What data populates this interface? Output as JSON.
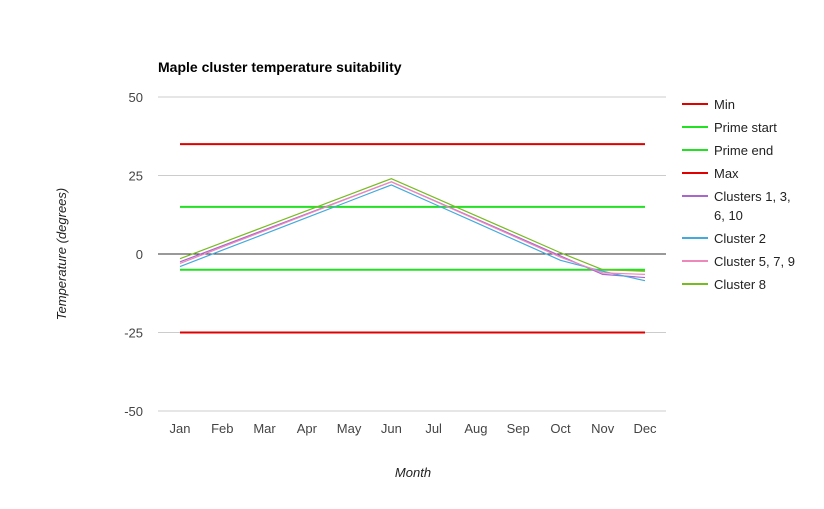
{
  "chart_data": {
    "type": "line",
    "title": "Maple cluster temperature suitability",
    "xlabel": "Month",
    "ylabel": "Temperature (degrees)",
    "categories": [
      "Jan",
      "Feb",
      "Mar",
      "Apr",
      "May",
      "Jun",
      "Jul",
      "Aug",
      "Sep",
      "Oct",
      "Nov",
      "Dec"
    ],
    "ylim": [
      -50,
      50
    ],
    "yticks": [
      50,
      25,
      0,
      -25,
      -50
    ],
    "ytick_labels": [
      "50",
      "25",
      "0",
      "-25",
      "-50"
    ],
    "grid": true,
    "legend_position": "right",
    "series": [
      {
        "name": "Min",
        "color": "#e00000",
        "values": [
          -25,
          -25,
          -25,
          -25,
          -25,
          -25,
          -25,
          -25,
          -25,
          -25,
          -25,
          -25
        ]
      },
      {
        "name": "Prime start",
        "color": "#22e022",
        "values": [
          -5,
          -5,
          -5,
          -5,
          -5,
          -5,
          -5,
          -5,
          -5,
          -5,
          -5,
          -5
        ]
      },
      {
        "name": "Prime end",
        "color": "#22e022",
        "values": [
          15,
          15,
          15,
          15,
          15,
          15,
          15,
          15,
          15,
          15,
          15,
          15
        ]
      },
      {
        "name": "Max",
        "color": "#e00000",
        "values": [
          35,
          35,
          35,
          35,
          35,
          35,
          35,
          35,
          35,
          35,
          35,
          35
        ]
      },
      {
        "name": "Clusters 1, 3, 6, 10",
        "legend_lines": [
          "Clusters 1, 3,",
          "6, 10"
        ],
        "color": "#aa66cc",
        "values": [
          -2.5,
          2.6,
          7.7,
          12.8,
          17.9,
          23,
          17.1,
          11.2,
          5.3,
          -0.6,
          -6.5,
          -7.5
        ]
      },
      {
        "name": "Cluster 2",
        "color": "#44aadd",
        "values": [
          -4,
          1.2,
          6.4,
          11.6,
          16.8,
          22,
          16,
          10,
          4,
          -2,
          -5.5,
          -8.5
        ]
      },
      {
        "name": "Cluster 5, 7, 9",
        "color": "#ee88bb",
        "values": [
          -3,
          2.2,
          7.4,
          12.6,
          17.8,
          23,
          17,
          11,
          5,
          -1,
          -6,
          -6.5
        ]
      },
      {
        "name": "Cluster 8",
        "color": "#77bb22",
        "values": [
          -1.5,
          3.6,
          8.7,
          13.8,
          18.9,
          24,
          18.1,
          12.2,
          6.3,
          0.4,
          -5,
          -5.5
        ]
      }
    ]
  }
}
